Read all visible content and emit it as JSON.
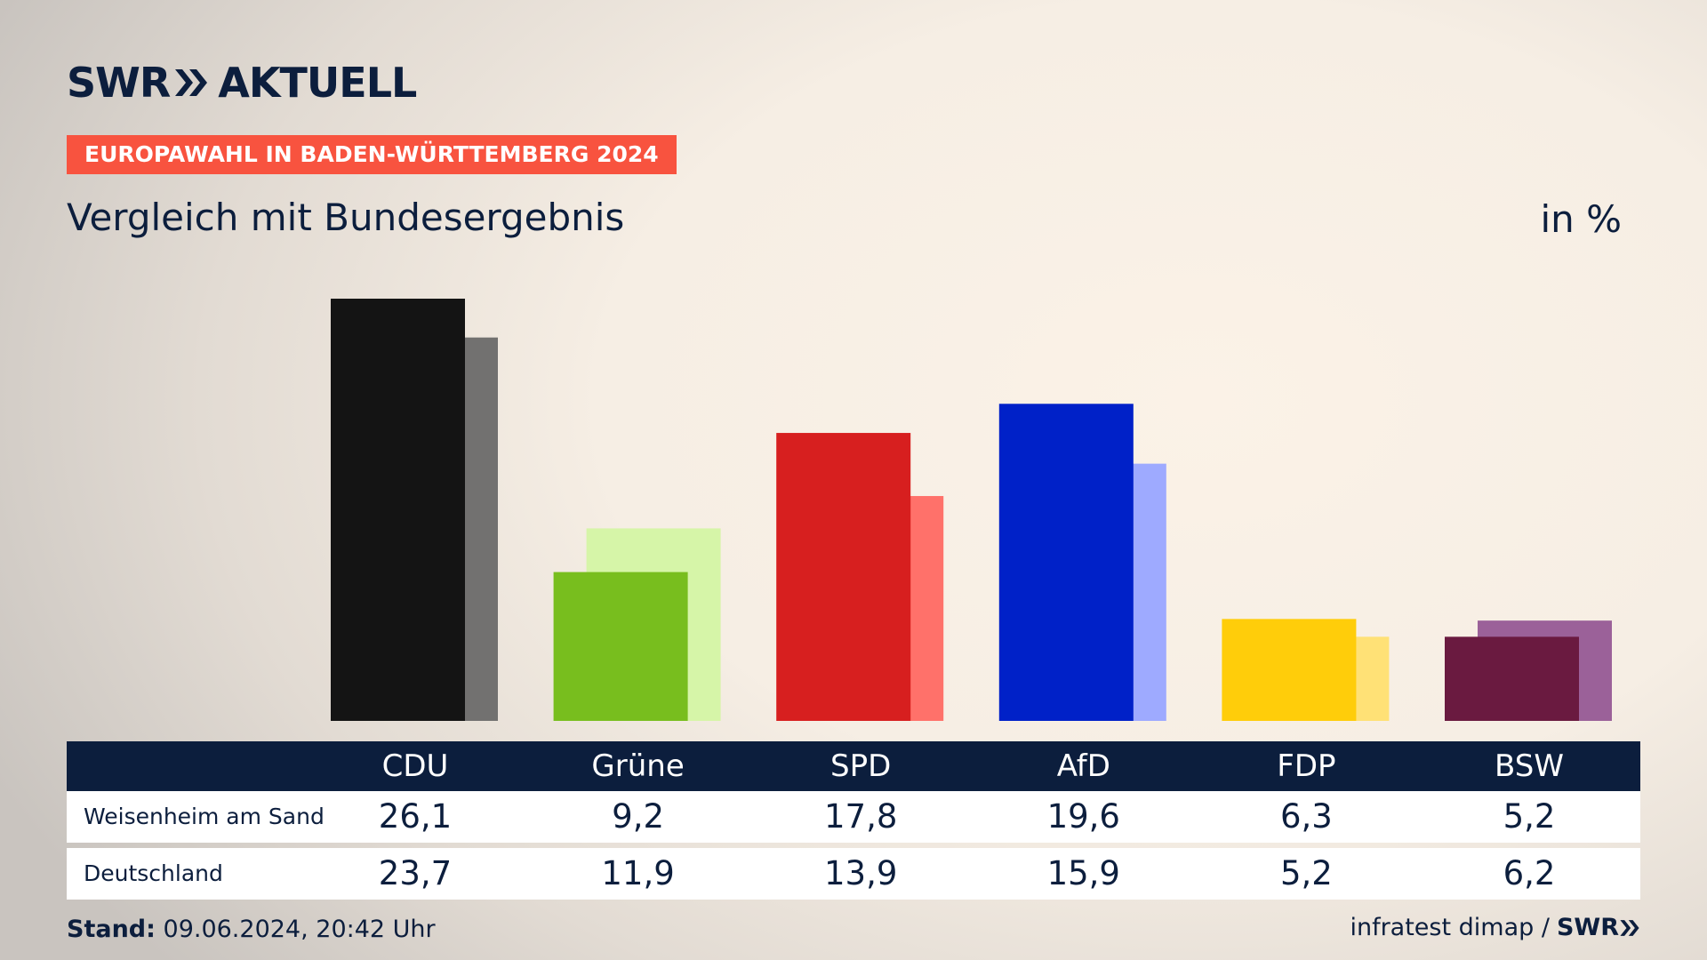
{
  "brand": {
    "word1": "SWR",
    "word2": "AKTUELL",
    "color": "#0c1e3d"
  },
  "tag": {
    "label": "EUROPAWAHL IN BADEN-WÜRTTEMBERG 2024",
    "color": "#f8533f"
  },
  "subtitle": "Vergleich mit Bundesergebnis",
  "unit": "in %",
  "chart_data": {
    "type": "bar",
    "categories": [
      "CDU",
      "Grüne",
      "SPD",
      "AfD",
      "FDP",
      "BSW"
    ],
    "series": [
      {
        "name": "Weisenheim am Sand",
        "values": [
          26.1,
          9.2,
          17.8,
          19.6,
          6.3,
          5.2
        ],
        "colors": [
          "#141414",
          "#78be1e",
          "#d71f1f",
          "#0021c8",
          "#ffcd0a",
          "#6a1a40"
        ]
      },
      {
        "name": "Deutschland",
        "values": [
          23.7,
          11.9,
          13.9,
          15.9,
          5.2,
          6.2
        ],
        "colors": [
          "#727170",
          "#d6f5a8",
          "#ff716a",
          "#9eaaff",
          "#ffe176",
          "#9b6199"
        ]
      }
    ],
    "ylim": [
      0,
      26.1
    ],
    "table_values": [
      [
        "26,1",
        "9,2",
        "17,8",
        "19,6",
        "6,3",
        "5,2"
      ],
      [
        "23,7",
        "11,9",
        "13,9",
        "15,9",
        "5,2",
        "6,2"
      ]
    ]
  },
  "footer": {
    "stand_label": "Stand:",
    "stand_value": "09.06.2024, 20:42 Uhr",
    "source": "infratest dimap /",
    "logo_text": "SWR"
  }
}
